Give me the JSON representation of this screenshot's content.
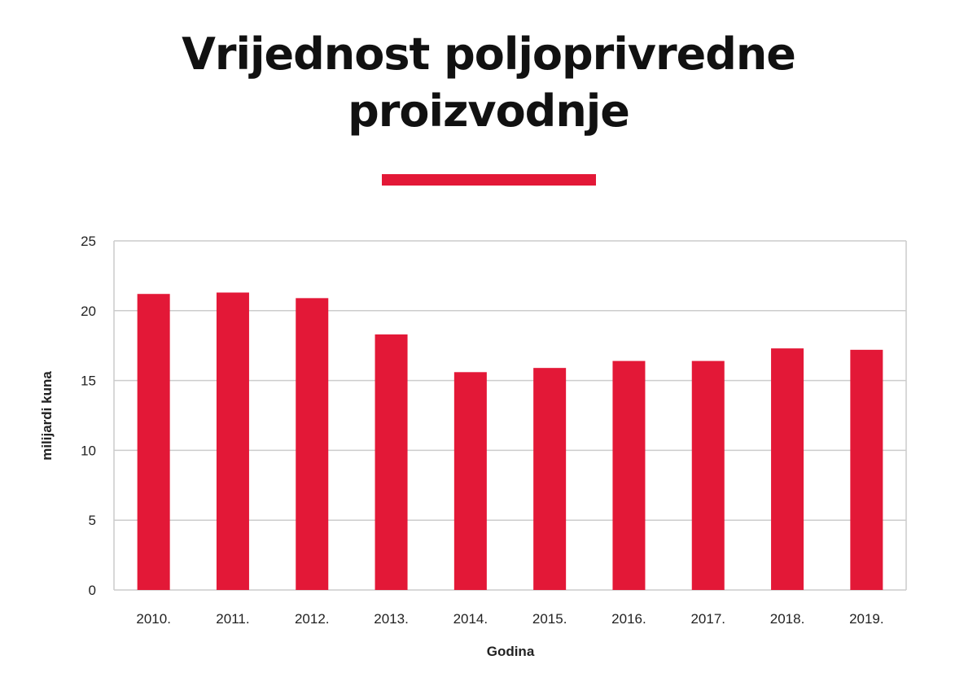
{
  "title_lines": [
    "Vrijednost poljoprivredne",
    "proizvodnje"
  ],
  "colors": {
    "bar": "#e31837",
    "accent": "#e31837",
    "grid": "#cccccc"
  },
  "chart_data": {
    "type": "bar",
    "title": "Vrijednost poljoprivredne proizvodnje",
    "xlabel": "Godina",
    "ylabel": "milijardi kuna",
    "categories": [
      "2010.",
      "2011.",
      "2012.",
      "2013.",
      "2014.",
      "2015.",
      "2016.",
      "2017.",
      "2018.",
      "2019."
    ],
    "values": [
      21.2,
      21.3,
      20.9,
      18.3,
      15.6,
      15.9,
      16.4,
      16.4,
      17.3,
      17.2
    ],
    "ylim": [
      0,
      25
    ],
    "yticks": [
      0,
      5,
      10,
      15,
      20,
      25
    ],
    "grid": true
  }
}
